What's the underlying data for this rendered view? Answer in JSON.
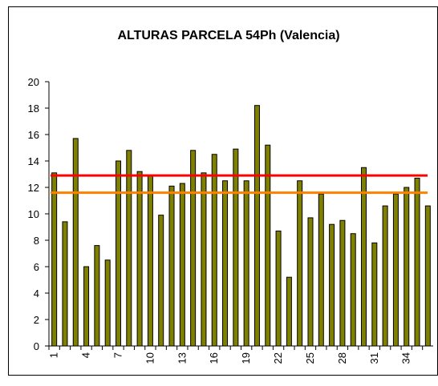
{
  "chart_data": {
    "type": "bar",
    "title": "ALTURAS PARCELA 54Ph (Valencia)",
    "categories": [
      "1",
      null,
      null,
      "4",
      null,
      null,
      "7",
      null,
      null,
      "10",
      null,
      null,
      "13",
      null,
      null,
      "16",
      null,
      null,
      "19",
      null,
      null,
      "22",
      null,
      null,
      "25",
      null,
      null,
      "28",
      null,
      null,
      "31",
      null,
      null,
      "34",
      null,
      null
    ],
    "values": [
      13.1,
      9.4,
      15.7,
      6.0,
      7.6,
      6.5,
      14.0,
      14.8,
      13.2,
      12.9,
      9.9,
      12.1,
      12.3,
      14.8,
      13.1,
      14.5,
      12.5,
      14.9,
      12.5,
      18.2,
      15.2,
      8.7,
      5.2,
      12.5,
      9.7,
      11.5,
      9.2,
      9.5,
      8.5,
      13.5,
      7.8,
      10.6,
      11.5,
      12.0,
      12.7,
      10.6
    ],
    "color": "#808000",
    "reference_lines": [
      {
        "value": 12.9,
        "color": "#ff0000"
      },
      {
        "value": 11.6,
        "color": "#ff8000"
      }
    ],
    "ylim": [
      0,
      20
    ],
    "yticks": [
      0,
      2,
      4,
      6,
      8,
      10,
      12,
      14,
      16,
      18,
      20
    ]
  }
}
